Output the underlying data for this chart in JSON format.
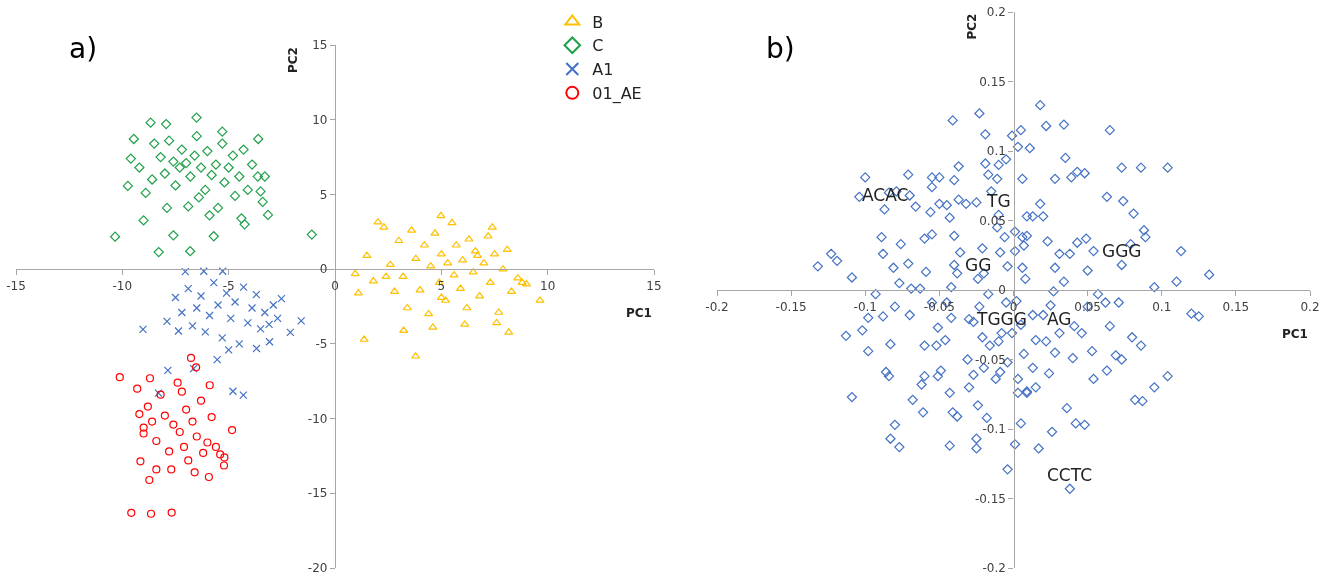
{
  "chart_data": [
    {
      "type": "scatter",
      "title": "a)",
      "xlabel": "PC1",
      "ylabel": "PC2",
      "xlim": [
        -15,
        15
      ],
      "xticks": [
        -15,
        -10,
        -5,
        0,
        5,
        10,
        15
      ],
      "ylim": [
        -20,
        15
      ],
      "yticks": [
        -20,
        -15,
        -10,
        -5,
        0,
        5,
        10,
        15
      ],
      "grid": false,
      "legend": "top right",
      "series": [
        {
          "name": "B",
          "color": "#ffc000",
          "marker": "triangle",
          "x": [
            0.95,
            1.37,
            3.79,
            9.64,
            4.98,
            2.02,
            8.17,
            3.23,
            1.1,
            1.5,
            1.8,
            2.3,
            2.6,
            2.8,
            3.0,
            3.2,
            3.4,
            3.6,
            3.8,
            4.0,
            4.2,
            4.4,
            4.5,
            4.7,
            4.9,
            5.0,
            5.2,
            5.3,
            5.5,
            5.6,
            5.7,
            5.9,
            6.0,
            6.2,
            6.3,
            6.5,
            6.6,
            6.8,
            7.0,
            7.2,
            7.3,
            7.5,
            7.7,
            7.9,
            8.1,
            8.3,
            8.6,
            8.8,
            9.0,
            6.1,
            4.6,
            7.6,
            5.0,
            6.7,
            2.4,
            7.4
          ],
          "values": [
            -0.31,
            -4.71,
            -5.83,
            -2.09,
            3.57,
            3.14,
            -4.23,
            -4.11,
            -1.6,
            0.9,
            -0.8,
            2.8,
            0.3,
            -1.5,
            1.9,
            -0.5,
            -2.6,
            2.6,
            0.7,
            -1.4,
            1.6,
            -3.0,
            0.2,
            2.4,
            -0.9,
            1.0,
            -2.1,
            0.4,
            3.1,
            -0.4,
            1.6,
            -1.3,
            0.6,
            -2.6,
            2.0,
            -0.2,
            1.2,
            -1.8,
            0.4,
            2.2,
            -0.9,
            1.0,
            -2.9,
            0.0,
            1.3,
            -1.5,
            -0.6,
            -0.9,
            -1.0,
            -3.7,
            -3.9,
            -3.6,
            -1.9,
            0.9,
            -0.5,
            2.8
          ]
        },
        {
          "name": "C",
          "color": "#21a04a",
          "marker": "diamond",
          "x": [
            -10.34,
            -1.09,
            -8.29,
            -6.81,
            -5.7,
            -7.6,
            -6.51,
            -8.67,
            -7.94,
            -9.46,
            -3.61,
            -9.74,
            -3.15,
            -4.25,
            -9.0,
            -3.63,
            -9.6,
            -9.2,
            -8.9,
            -8.5,
            -8.2,
            -8.0,
            -7.8,
            -7.6,
            -7.5,
            -7.3,
            -7.2,
            -7.0,
            -6.9,
            -6.8,
            -6.6,
            -6.5,
            -6.3,
            -6.1,
            -6.0,
            -5.8,
            -5.6,
            -5.5,
            -5.3,
            -5.2,
            -5.0,
            -4.8,
            -4.7,
            -4.5,
            -4.3,
            -4.1,
            -3.9,
            -3.5,
            -3.4,
            -5.9,
            -7.9,
            -8.6,
            -4.4,
            -3.3,
            -6.4,
            -5.3
          ],
          "values": [
            2.17,
            2.31,
            1.14,
            1.2,
            2.2,
            2.26,
            10.14,
            9.8,
            9.71,
            8.71,
            8.71,
            5.57,
            3.63,
            3.0,
            3.26,
            6.2,
            7.4,
            6.8,
            5.1,
            8.4,
            7.5,
            6.4,
            8.6,
            7.2,
            5.6,
            6.8,
            8.0,
            7.1,
            4.2,
            6.2,
            7.6,
            8.9,
            6.8,
            5.3,
            7.9,
            6.3,
            7.0,
            4.1,
            8.4,
            5.8,
            6.8,
            7.6,
            4.9,
            6.2,
            8.0,
            5.3,
            7.0,
            5.2,
            4.5,
            3.6,
            4.1,
            6.0,
            3.4,
            6.2,
            4.8,
            9.2
          ]
        },
        {
          "name": "A1",
          "color": "#4472c4",
          "marker": "cross",
          "x": [
            -9.03,
            -1.59,
            -7.04,
            -6.17,
            -5.28,
            -5.54,
            -7.86,
            -6.65,
            -4.8,
            -4.31,
            -3.08,
            -3.69,
            -2.1,
            -2.52,
            -7.36,
            -7.9,
            -7.5,
            -7.2,
            -6.9,
            -6.7,
            -6.5,
            -6.3,
            -6.1,
            -5.9,
            -5.7,
            -5.5,
            -5.3,
            -5.1,
            -4.9,
            -4.7,
            -4.5,
            -4.3,
            -4.1,
            -3.9,
            -3.7,
            -3.5,
            -3.3,
            -3.1,
            -2.9,
            -2.7,
            -8.3,
            -5.0
          ],
          "values": [
            -4.03,
            -3.46,
            -0.17,
            -0.14,
            -0.14,
            -6.06,
            -6.77,
            -6.66,
            -8.17,
            -8.43,
            -4.86,
            -5.31,
            -4.23,
            -1.97,
            -4.14,
            -3.5,
            -1.9,
            -2.9,
            -1.3,
            -3.8,
            -2.6,
            -1.8,
            -4.2,
            -3.1,
            -0.9,
            -2.4,
            -4.6,
            -1.6,
            -3.3,
            -2.2,
            -5.0,
            -1.2,
            -3.6,
            -2.6,
            -1.7,
            -4.0,
            -2.9,
            -3.7,
            -2.4,
            -3.3,
            -8.3,
            -5.4
          ]
        },
        {
          "name": "01_AE",
          "color": "#ff0000",
          "marker": "circle",
          "x": [
            -10.12,
            -9.58,
            -8.65,
            -7.68,
            -6.77,
            -6.53,
            -4.84,
            -5.93,
            -8.73,
            -9.15,
            -5.22,
            -5.89,
            -9.3,
            -9.2,
            -9.0,
            -8.8,
            -8.6,
            -8.7,
            -8.4,
            -8.2,
            -8.0,
            -7.8,
            -7.6,
            -7.4,
            -7.3,
            -7.1,
            -7.0,
            -6.9,
            -6.7,
            -6.5,
            -6.3,
            -6.2,
            -6.0,
            -5.8,
            -5.6,
            -5.4,
            -5.2,
            -7.7,
            -6.6,
            -8.4,
            -7.2,
            -9.0
          ],
          "values": [
            -7.23,
            -16.31,
            -16.37,
            -16.29,
            -5.94,
            -6.57,
            -10.77,
            -13.91,
            -14.11,
            -12.86,
            -13.14,
            -7.77,
            -8.0,
            -9.7,
            -10.6,
            -9.2,
            -10.2,
            -7.3,
            -11.5,
            -8.4,
            -9.8,
            -12.2,
            -10.4,
            -7.6,
            -10.9,
            -11.9,
            -9.4,
            -12.8,
            -10.2,
            -11.2,
            -8.8,
            -12.3,
            -11.6,
            -9.9,
            -11.9,
            -12.4,
            -12.6,
            -13.4,
            -13.6,
            -13.4,
            -8.2,
            -11.0
          ]
        }
      ]
    },
    {
      "type": "scatter",
      "title": "b)",
      "xlabel": "PC1",
      "ylabel": "PC2",
      "xlim": [
        -0.2,
        0.2
      ],
      "xticks": [
        -0.2,
        -0.15,
        -0.1,
        -0.05,
        0,
        0.05,
        0.1,
        0.15,
        0.2
      ],
      "ylim": [
        -0.2,
        0.2
      ],
      "yticks": [
        -0.2,
        -0.15,
        -0.1,
        -0.05,
        0,
        0.05,
        0.1,
        0.15,
        0.2
      ],
      "grid": false,
      "annotations": [
        {
          "text": "ACAC",
          "x": -0.087,
          "y": 0.058
        },
        {
          "text": "TG",
          "x": -0.01,
          "y": 0.054
        },
        {
          "text": "GGG",
          "x": 0.073,
          "y": 0.018
        },
        {
          "text": "GG",
          "x": -0.024,
          "y": 0.008
        },
        {
          "text": "TGGG",
          "x": -0.008,
          "y": -0.031
        },
        {
          "text": "AG",
          "x": 0.031,
          "y": -0.031
        },
        {
          "text": "CCTC",
          "x": 0.038,
          "y": -0.143
        }
      ],
      "series": [
        {
          "color": "#4472c4",
          "marker": "diamond",
          "x": [
            -0.132,
            -0.123,
            -0.119,
            -0.109,
            -0.104,
            -0.1,
            -0.093,
            -0.089,
            -0.088,
            -0.084,
            -0.079,
            -0.081,
            -0.077,
            -0.076,
            -0.071,
            -0.07,
            -0.066,
            -0.071,
            -0.069,
            -0.063,
            -0.059,
            -0.06,
            -0.055,
            -0.055,
            -0.056,
            -0.055,
            -0.05,
            -0.05,
            -0.045,
            -0.043,
            -0.04,
            -0.041,
            -0.037,
            -0.04,
            -0.036,
            -0.042,
            -0.037,
            -0.032,
            -0.025,
            -0.023,
            -0.019,
            -0.019,
            -0.017,
            -0.015,
            -0.011,
            -0.01,
            -0.005,
            -0.001,
            0.005,
            0.003,
            0.011,
            0.006,
            0.018,
            0.022,
            0.034,
            0.035,
            0.028,
            0.039,
            0.043,
            0.048,
            0.065,
            0.073,
            0.086,
            0.104,
            0.063,
            0.074,
            0.081,
            0.088,
            0.089,
            0.079,
            0.113,
            0.132,
            0.11,
            0.095,
            0.12,
            0.125,
            0.104,
            0.095,
            0.087,
            0.082,
            0.086,
            0.08,
            0.073,
            0.069,
            0.063,
            0.065,
            0.054,
            0.053,
            0.048,
            0.042,
            0.036,
            0.026,
            0.038,
            0.017,
            0.001,
            0.005,
            -0.004,
            0.009,
            0.015,
            0.024,
            0.028,
            0.04,
            0.041,
            0.046,
            0.05,
            0.057,
            0.062,
            0.071,
            0.025,
            0.027,
            0.034,
            0.031,
            0.038,
            0.043,
            0.049,
            0.054,
            0.05,
            0.028,
            0.023,
            0.02,
            0.013,
            0.009,
            0.018,
            0.009,
            0.006,
            0.001,
            0.001,
            0.007,
            0.006,
            0.008,
            -0.004,
            -0.009,
            -0.006,
            -0.011,
            -0.021,
            -0.02,
            -0.024,
            -0.023,
            -0.017,
            -0.005,
            0.002,
            0.005,
            -0.001,
            -0.008,
            -0.01,
            -0.016,
            -0.021,
            -0.03,
            -0.027,
            -0.031,
            -0.027,
            -0.02,
            -0.012,
            -0.009,
            -0.004,
            0.003,
            0.003,
            0.009,
            0.007,
            0.013,
            0.015,
            0.022,
            0.02,
            0.013,
            -0.03,
            -0.024,
            -0.018,
            -0.025,
            -0.025,
            -0.043,
            -0.041,
            -0.038,
            -0.043,
            -0.049,
            -0.051,
            -0.046,
            -0.052,
            -0.06,
            -0.06,
            -0.062,
            -0.061,
            -0.068,
            -0.08,
            -0.083,
            -0.077,
            -0.086,
            -0.084,
            -0.083,
            -0.098,
            -0.102,
            -0.098,
            -0.113,
            -0.109,
            -0.088,
            -0.08,
            -0.07,
            -0.051,
            -0.042,
            -0.055,
            -0.045,
            -0.038,
            -0.04,
            -0.087,
            -0.01,
            0.073,
            0.031
          ],
          "values": [
            0.017,
            0.026,
            0.021,
            0.009,
            0.067,
            0.081,
            -0.003,
            0.038,
            0.026,
            0.07,
            0.071,
            0.016,
            0.005,
            0.033,
            0.083,
            0.068,
            0.06,
            0.019,
            0.001,
            0.001,
            0.013,
            0.037,
            0.081,
            0.074,
            0.056,
            0.04,
            0.081,
            0.062,
            0.061,
            0.052,
            0.039,
            0.122,
            0.089,
            0.079,
            0.027,
            0.002,
            0.065,
            0.062,
            0.063,
            0.127,
            0.112,
            0.091,
            0.083,
            0.071,
            0.08,
            0.09,
            0.094,
            0.111,
            0.115,
            0.103,
            0.102,
            0.08,
            0.133,
            0.118,
            0.119,
            0.095,
            0.08,
            0.081,
            0.085,
            0.084,
            0.115,
            0.088,
            0.088,
            0.088,
            0.067,
            0.064,
            0.055,
            0.043,
            0.038,
            0.033,
            0.028,
            0.011,
            0.006,
            0.002,
            -0.017,
            -0.019,
            -0.062,
            -0.07,
            -0.08,
            -0.079,
            -0.04,
            -0.034,
            -0.05,
            -0.047,
            -0.058,
            -0.026,
            -0.064,
            -0.044,
            -0.097,
            -0.096,
            -0.085,
            -0.102,
            -0.143,
            -0.114,
            -0.111,
            -0.096,
            -0.129,
            -0.073,
            -0.07,
            -0.06,
            -0.045,
            -0.049,
            -0.026,
            -0.031,
            -0.012,
            -0.003,
            -0.009,
            -0.009,
            -0.011,
            -0.001,
            0.006,
            0.026,
            0.026,
            0.034,
            0.037,
            0.028,
            0.014,
            0.016,
            0.035,
            0.053,
            0.053,
            0.053,
            0.062,
            0.039,
            0.038,
            0.042,
            0.028,
            0.032,
            0.016,
            0.008,
            0.017,
            0.027,
            0.038,
            0.045,
            0.03,
            0.012,
            0.008,
            -0.012,
            -0.003,
            -0.009,
            -0.008,
            -0.025,
            -0.031,
            -0.031,
            -0.037,
            -0.04,
            -0.034,
            -0.021,
            -0.023,
            -0.05,
            -0.061,
            -0.056,
            -0.064,
            -0.059,
            -0.052,
            -0.064,
            -0.074,
            -0.074,
            -0.046,
            -0.056,
            -0.036,
            -0.037,
            -0.018,
            -0.018,
            -0.07,
            -0.083,
            -0.092,
            -0.107,
            -0.114,
            -0.112,
            -0.088,
            -0.091,
            -0.074,
            -0.058,
            -0.062,
            -0.036,
            -0.04,
            -0.04,
            -0.062,
            -0.068,
            -0.088,
            -0.079,
            -0.097,
            -0.107,
            -0.113,
            -0.059,
            -0.062,
            -0.039,
            -0.044,
            -0.029,
            -0.02,
            -0.033,
            -0.077,
            -0.019,
            -0.012,
            -0.018,
            -0.027,
            -0.02,
            -0.009,
            -0.009,
            0.012,
            0.018,
            0.058,
            0.054,
            0.018,
            -0.031
          ]
        }
      ]
    }
  ]
}
